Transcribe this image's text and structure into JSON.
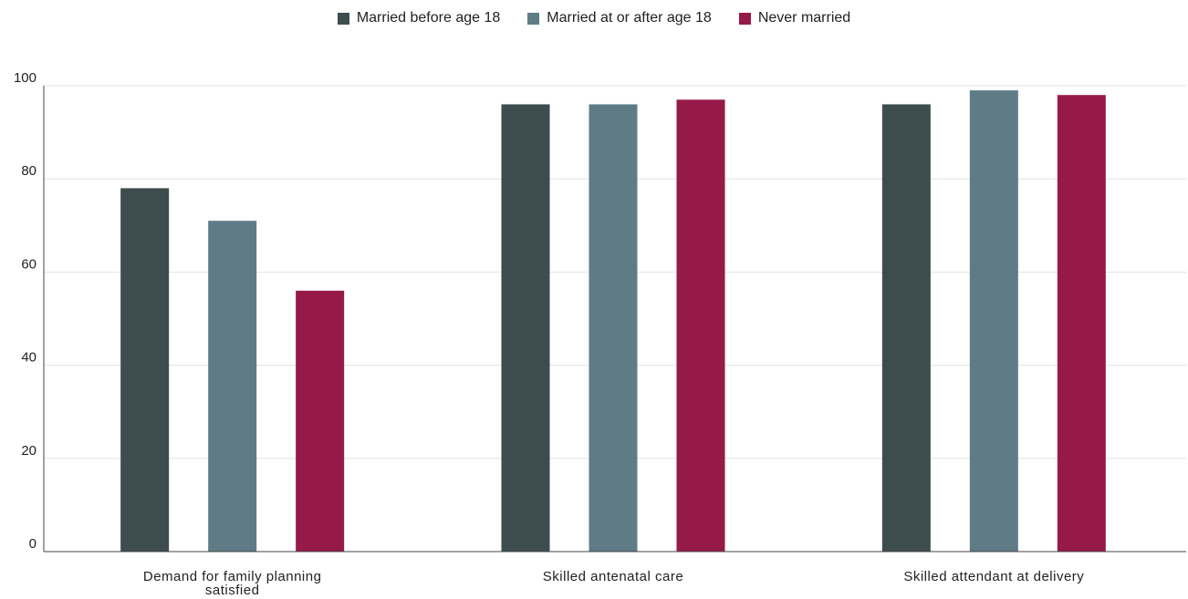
{
  "chart_data": {
    "type": "bar",
    "categories": [
      [
        "Demand for family planning",
        "satisfied"
      ],
      [
        "Skilled antenatal care"
      ],
      [
        "Skilled attendant at delivery"
      ]
    ],
    "series": [
      {
        "name": "Married before age 18",
        "color": "#3d4d4d",
        "values": [
          78,
          96,
          96
        ]
      },
      {
        "name": "Married at or after age 18",
        "color": "#5f7c86",
        "values": [
          71,
          96,
          99
        ]
      },
      {
        "name": "Never married",
        "color": "#961a47",
        "values": [
          56,
          97,
          98
        ]
      }
    ],
    "ylim": [
      0,
      100
    ],
    "yticks": [
      0,
      20,
      40,
      60,
      80,
      100
    ],
    "grid": true,
    "legend_position": "top-center"
  }
}
